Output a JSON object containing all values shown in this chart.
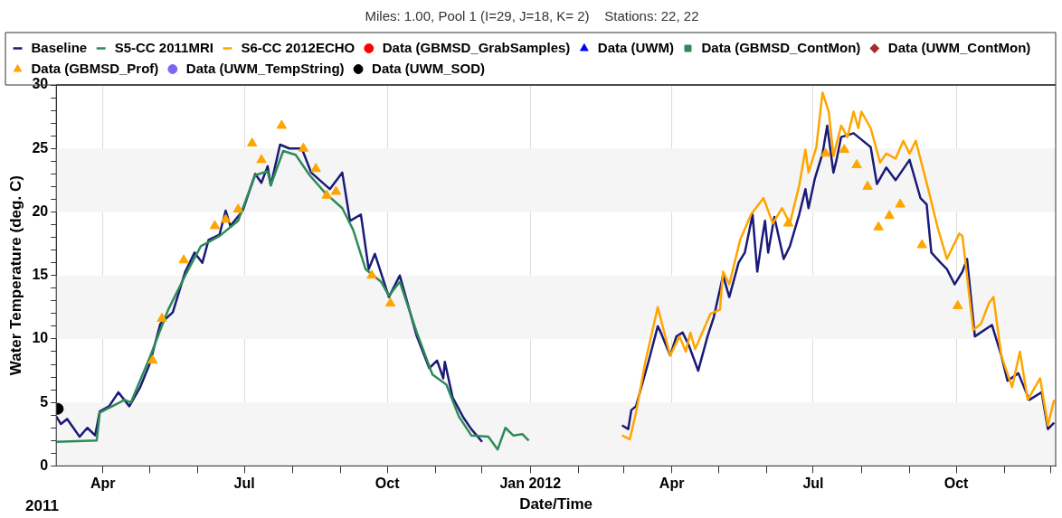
{
  "chart_data": {
    "type": "line",
    "title": "Miles: 1.00, Pool 1 (I=29, J=18, K= 2)    Stations: 22, 22",
    "xlabel": "Date/Time",
    "ylabel": "Water Temperature (deg. C)",
    "annotations": [
      "2011"
    ],
    "xlim": [
      "2011-03-02",
      "2012-12-04"
    ],
    "xticks": [
      {
        "value": "2011-04-01",
        "label": "Apr"
      },
      {
        "value": "2011-05-01",
        "label": null
      },
      {
        "value": "2011-06-01",
        "label": null
      },
      {
        "value": "2011-07-01",
        "label": "Jul"
      },
      {
        "value": "2011-08-01",
        "label": null
      },
      {
        "value": "2011-09-01",
        "label": null
      },
      {
        "value": "2011-10-01",
        "label": "Oct"
      },
      {
        "value": "2011-11-01",
        "label": null
      },
      {
        "value": "2011-12-01",
        "label": null
      },
      {
        "value": "2012-01-01",
        "label": "Jan 2012"
      },
      {
        "value": "2012-02-01",
        "label": null
      },
      {
        "value": "2012-03-01",
        "label": null
      },
      {
        "value": "2012-04-01",
        "label": "Apr"
      },
      {
        "value": "2012-05-01",
        "label": null
      },
      {
        "value": "2012-06-01",
        "label": null
      },
      {
        "value": "2012-07-01",
        "label": "Jul"
      },
      {
        "value": "2012-08-01",
        "label": null
      },
      {
        "value": "2012-09-01",
        "label": null
      },
      {
        "value": "2012-10-01",
        "label": "Oct"
      },
      {
        "value": "2012-11-01",
        "label": null
      },
      {
        "value": "2012-12-01",
        "label": null
      }
    ],
    "ylim": [
      0,
      30
    ],
    "yticks": [
      0,
      {
        "value": 1,
        "label": null
      },
      {
        "value": 2,
        "label": null
      },
      {
        "value": 3,
        "label": null
      },
      {
        "value": 4,
        "label": null
      },
      5,
      {
        "value": 6,
        "label": null
      },
      {
        "value": 7,
        "label": null
      },
      {
        "value": 8,
        "label": null
      },
      {
        "value": 9,
        "label": null
      },
      10,
      {
        "value": 11,
        "label": null
      },
      {
        "value": 12,
        "label": null
      },
      {
        "value": 13,
        "label": null
      },
      {
        "value": 14,
        "label": null
      },
      15,
      {
        "value": 16,
        "label": null
      },
      {
        "value": 17,
        "label": null
      },
      {
        "value": 18,
        "label": null
      },
      {
        "value": 19,
        "label": null
      },
      20,
      {
        "value": 21,
        "label": null
      },
      {
        "value": 22,
        "label": null
      },
      {
        "value": 23,
        "label": null
      },
      {
        "value": 24,
        "label": null
      },
      25,
      {
        "value": 26,
        "label": null
      },
      {
        "value": 27,
        "label": null
      },
      {
        "value": 28,
        "label": null
      },
      {
        "value": 29,
        "label": null
      },
      30
    ],
    "grid": "x",
    "legend": "top",
    "bands": [
      {
        "axis": "y",
        "from": 0,
        "to": 5,
        "color": "#f5f5f5"
      },
      {
        "axis": "y",
        "from": 10,
        "to": 15,
        "color": "#f5f5f5"
      },
      {
        "axis": "y",
        "from": 20,
        "to": 25,
        "color": "#f5f5f5"
      }
    ],
    "series": [
      {
        "name": "Baseline",
        "type": "line",
        "color": "#1a1a78",
        "x": [
          "2011-03-02",
          "2011-03-05",
          "2011-03-09",
          "2011-03-13",
          "2011-03-17",
          "2011-03-22",
          "2011-03-27",
          "2011-03-30",
          "2011-04-05",
          "2011-04-11",
          "2011-04-18",
          "2011-04-25",
          "2011-05-01",
          "2011-05-08",
          "2011-05-16",
          "2011-05-24",
          "2011-05-30",
          "2011-06-04",
          "2011-06-08",
          "2011-06-15",
          "2011-06-19",
          "2011-06-22",
          "2011-06-30",
          "2011-07-08",
          "2011-07-12",
          "2011-07-16",
          "2011-07-18",
          "2011-07-24",
          "2011-07-30",
          "2011-08-07",
          "2011-08-13",
          "2011-08-25",
          "2011-09-02",
          "2011-09-07",
          "2011-09-14",
          "2011-09-19",
          "2011-09-23",
          "2011-10-02",
          "2011-10-09",
          "2011-10-20",
          "2011-10-28",
          "2011-11-02",
          "2011-11-06",
          "2011-11-07",
          "2011-11-12",
          "2011-11-19",
          "2011-11-24",
          "2011-12-01",
          "2012-01-20",
          "2012-02-29",
          "2012-03-04",
          "2012-03-06",
          "2012-03-09",
          "2012-03-17",
          "2012-03-23",
          "2012-03-25",
          "2012-03-31",
          "2012-04-04",
          "2012-04-08",
          "2012-04-12",
          "2012-04-18",
          "2012-04-24",
          "2012-04-28",
          "2012-05-04",
          "2012-05-08",
          "2012-05-14",
          "2012-05-18",
          "2012-05-23",
          "2012-05-26",
          "2012-05-29",
          "2012-05-31",
          "2012-06-02",
          "2012-06-06",
          "2012-06-12",
          "2012-06-16",
          "2012-06-22",
          "2012-06-26",
          "2012-06-28",
          "2012-07-02",
          "2012-07-07",
          "2012-07-10",
          "2012-07-14",
          "2012-07-16",
          "2012-07-19",
          "2012-07-27",
          "2012-08-01",
          "2012-08-07",
          "2012-08-11",
          "2012-08-17",
          "2012-08-23",
          "2012-09-01",
          "2012-09-08",
          "2012-09-12",
          "2012-09-15",
          "2012-09-21",
          "2012-09-25",
          "2012-09-30",
          "2012-10-05",
          "2012-10-08",
          "2012-10-13",
          "2012-10-24",
          "2012-10-30",
          "2012-11-03",
          "2012-11-10",
          "2012-11-17",
          "2012-11-25",
          "2012-11-29",
          "2012-12-03"
        ],
        "values": [
          3.9,
          3.3,
          3.7,
          3.0,
          2.3,
          3.0,
          2.4,
          4.3,
          4.7,
          5.8,
          4.7,
          6.2,
          8.0,
          11.2,
          12.1,
          15.3,
          16.8,
          16.0,
          17.8,
          18.2,
          20.1,
          18.9,
          20.1,
          23.0,
          22.3,
          23.6,
          22.1,
          25.3,
          25.0,
          25.0,
          23.1,
          21.8,
          23.1,
          19.3,
          19.8,
          15.5,
          16.7,
          13.3,
          15.0,
          10.2,
          7.7,
          8.3,
          6.9,
          8.2,
          5.4,
          3.8,
          2.9,
          1.9,
          null,
          3.2,
          2.9,
          4.4,
          4.7,
          8.2,
          11.0,
          10.5,
          8.7,
          10.2,
          10.5,
          9.5,
          7.5,
          10.2,
          11.7,
          15.0,
          13.3,
          16.0,
          16.8,
          19.8,
          15.3,
          17.8,
          19.3,
          16.8,
          19.6,
          16.3,
          17.3,
          19.8,
          21.8,
          20.3,
          22.6,
          24.6,
          26.8,
          23.1,
          24.1,
          25.9,
          26.2,
          25.7,
          25.1,
          22.2,
          23.5,
          22.5,
          24.1,
          21.1,
          20.6,
          16.8,
          16.0,
          15.5,
          14.3,
          15.3,
          16.3,
          10.2,
          11.1,
          8.7,
          6.7,
          7.3,
          5.2,
          5.8,
          2.9,
          3.4
        ]
      },
      {
        "name": "S5-CC 2011MRI",
        "type": "line",
        "color": "#2e8b57",
        "x": [
          "2011-03-02",
          "2011-03-28",
          "2011-03-30",
          "2011-04-15",
          "2011-04-19",
          "2011-05-01",
          "2011-05-13",
          "2011-05-24",
          "2011-06-03",
          "2011-06-15",
          "2011-06-27",
          "2011-07-08",
          "2011-07-16",
          "2011-07-18",
          "2011-07-26",
          "2011-08-03",
          "2011-08-12",
          "2011-08-22",
          "2011-09-02",
          "2011-09-09",
          "2011-09-17",
          "2011-09-27",
          "2011-10-02",
          "2011-10-09",
          "2011-10-20",
          "2011-10-30",
          "2011-11-08",
          "2011-11-16",
          "2011-11-24",
          "2011-12-05",
          "2011-12-11",
          "2011-12-16",
          "2011-12-21",
          "2011-12-27",
          "2011-12-31"
        ],
        "values": [
          1.9,
          2.0,
          4.2,
          5.2,
          5.0,
          8.5,
          12.3,
          15.0,
          17.3,
          18.1,
          19.3,
          22.9,
          23.2,
          22.1,
          24.8,
          24.5,
          22.9,
          21.5,
          20.3,
          18.6,
          15.5,
          14.5,
          13.4,
          14.5,
          10.5,
          7.2,
          6.4,
          3.9,
          2.4,
          2.3,
          1.3,
          3.0,
          2.4,
          2.5,
          2.0
        ]
      },
      {
        "name": "S6-CC 2012ECHO",
        "type": "line",
        "color": "#ffa500",
        "x": [
          "2012-02-29",
          "2012-03-05",
          "2012-03-09",
          "2012-03-15",
          "2012-03-23",
          "2012-03-31",
          "2012-04-06",
          "2012-04-10",
          "2012-04-13",
          "2012-04-16",
          "2012-04-26",
          "2012-05-02",
          "2012-05-04",
          "2012-05-08",
          "2012-05-15",
          "2012-05-22",
          "2012-05-30",
          "2012-06-05",
          "2012-06-11",
          "2012-06-16",
          "2012-06-22",
          "2012-06-26",
          "2012-06-28",
          "2012-07-03",
          "2012-07-07",
          "2012-07-11",
          "2012-07-14",
          "2012-07-19",
          "2012-07-23",
          "2012-07-27",
          "2012-07-30",
          "2012-08-01",
          "2012-08-07",
          "2012-08-13",
          "2012-08-17",
          "2012-08-23",
          "2012-08-28",
          "2012-09-01",
          "2012-09-05",
          "2012-09-13",
          "2012-09-19",
          "2012-09-25",
          "2012-10-03",
          "2012-10-05",
          "2012-10-12",
          "2012-10-17",
          "2012-10-22",
          "2012-10-25",
          "2012-10-30",
          "2012-11-06",
          "2012-11-11",
          "2012-11-16",
          "2012-11-24",
          "2012-11-29",
          "2012-12-03"
        ],
        "values": [
          2.4,
          2.1,
          4.2,
          8.2,
          12.5,
          8.7,
          10.2,
          9.0,
          10.5,
          9.2,
          12.0,
          12.3,
          15.3,
          14.3,
          17.8,
          19.8,
          21.1,
          19.1,
          20.3,
          19.1,
          22.1,
          24.9,
          23.1,
          25.1,
          29.4,
          27.9,
          24.4,
          26.8,
          25.9,
          27.9,
          26.6,
          27.9,
          26.6,
          23.9,
          24.6,
          24.2,
          25.6,
          24.6,
          25.6,
          21.8,
          18.8,
          16.3,
          18.3,
          18.1,
          10.7,
          11.2,
          12.8,
          13.3,
          8.7,
          6.2,
          9.0,
          5.2,
          6.9,
          3.2,
          5.2
        ]
      },
      {
        "name": "Data (GBMSD_GrabSamples)",
        "type": "scatter",
        "marker": "circle",
        "color": "#ff0000"
      },
      {
        "name": "Data (UWM)",
        "type": "scatter",
        "marker": "triangle",
        "color": "#0000ff"
      },
      {
        "name": "Data (GBMSD_ContMon)",
        "type": "scatter",
        "marker": "square",
        "color": "#2e8b57"
      },
      {
        "name": "Data (UWM_ContMon)",
        "type": "scatter",
        "marker": "diamond",
        "color": "#a52a2a"
      },
      {
        "name": "Data (GBMSD_Prof)",
        "type": "scatter",
        "marker": "triangle",
        "color": "#ffa500",
        "x": [
          "2011-05-03",
          "2011-05-09",
          "2011-05-23",
          "2011-06-12",
          "2011-06-19",
          "2011-06-27",
          "2011-07-06",
          "2011-07-12",
          "2011-07-25",
          "2011-08-08",
          "2011-08-16",
          "2011-08-23",
          "2011-08-29",
          "2011-09-21",
          "2011-10-03",
          "2012-06-15",
          "2012-07-09",
          "2012-07-21",
          "2012-07-29",
          "2012-08-05",
          "2012-08-12",
          "2012-08-19",
          "2012-08-26",
          "2012-09-09",
          "2012-10-02"
        ],
        "values": [
          8.3,
          11.6,
          16.2,
          18.9,
          19.4,
          20.2,
          25.4,
          24.1,
          26.8,
          25.0,
          23.4,
          21.3,
          21.6,
          15.0,
          12.8,
          19.1,
          24.6,
          24.9,
          23.7,
          22.0,
          18.8,
          19.7,
          20.6,
          17.4,
          12.6
        ]
      },
      {
        "name": "Data (UWM_TempString)",
        "type": "scatter",
        "marker": "circle",
        "color": "#7b68ee"
      },
      {
        "name": "Data (UWM_SOD)",
        "type": "scatter",
        "marker": "circle",
        "color": "#000000",
        "x": [
          "2011-03-03"
        ],
        "values": [
          4.5
        ]
      }
    ]
  }
}
